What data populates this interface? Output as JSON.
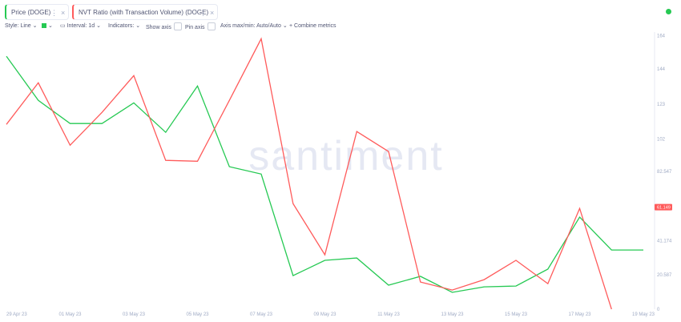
{
  "toolbar": {
    "style": "Style: Line",
    "interval": "Interval: 1d",
    "indicators": "Indicators:",
    "show_axis": "Show axis",
    "pin_axis": "Pin axis",
    "axis_minmax": "Axis max/min: Auto/Auto",
    "combine": "Combine metrics"
  },
  "watermark": "santiment",
  "chart_data": {
    "type": "line",
    "x": [
      "29 Apr 23",
      null,
      "01 May 23",
      null,
      "03 May 23",
      null,
      "05 May 23",
      null,
      "07 May 23",
      null,
      "09 May 23",
      null,
      "11 May 23",
      null,
      "13 May 23",
      null,
      "15 May 23",
      null,
      "17 May 23",
      null,
      "19 May 23"
    ],
    "series": [
      {
        "name": "Price (DOGE)",
        "color": "#26c953",
        "values": [
          151.6,
          125.2,
          111.3,
          111.3,
          123.7,
          106,
          133.8,
          85.4,
          81,
          20.1,
          29.3,
          30.7,
          14.4,
          19.7,
          10.1,
          13.4,
          13.9,
          24,
          55.2,
          35.5,
          35.5
        ]
      },
      {
        "name": "NVT Ratio (with Transaction Volume) (DOGE)",
        "color": "#ff5b5b",
        "values": [
          110.8,
          135.7,
          98.3,
          118,
          140,
          89.2,
          88.7,
          125.2,
          162.1,
          63.3,
          32.6,
          106.5,
          94.5,
          16.3,
          11.5,
          17.7,
          29.3,
          15.3,
          60.4,
          0,
          null
        ]
      }
    ],
    "ylim": [
      0,
      164.7
    ],
    "yticks": [
      164,
      144,
      123,
      102,
      82.547,
      61.149,
      41.174,
      20.587,
      0
    ]
  }
}
